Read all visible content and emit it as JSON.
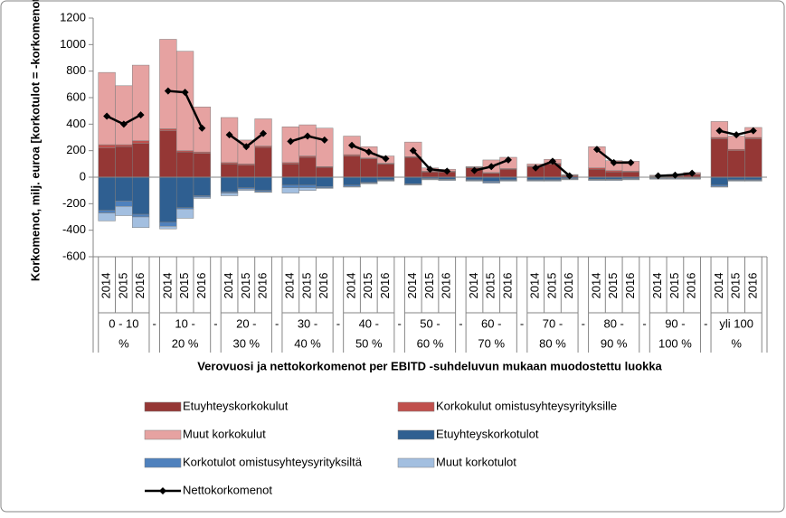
{
  "chart_data": {
    "type": "stacked-bar-line",
    "y_label": "Korkomenot, milj. euroa [korkotulot = -korkomenot]",
    "x_label": "Verovuosi ja nettokorkomenot per EBITD  -suhdeluvun mukaan muodostettu luokka",
    "categories": [
      "2014",
      "2015",
      "2016",
      "2014",
      "2015",
      "2016",
      "2014",
      "2015",
      "2016",
      "2014",
      "2015",
      "2016",
      "2014",
      "2015",
      "2016",
      "2014",
      "2015",
      "2016",
      "2014",
      "2015",
      "2016",
      "2014",
      "2015",
      "2016",
      "2014",
      "2015",
      "2016",
      "2014",
      "2015",
      "2016",
      "2014",
      "2015",
      "2016"
    ],
    "groups": [
      [
        "0 - 10",
        "%"
      ],
      [
        "10 -",
        "20 %"
      ],
      [
        "20 -",
        "30 %"
      ],
      [
        "30 -",
        "40 %"
      ],
      [
        "40 -",
        "50 %"
      ],
      [
        "50 -",
        "60 %"
      ],
      [
        "60 -",
        "70 %"
      ],
      [
        "70 -",
        "80 %"
      ],
      [
        "80 -",
        "90 %"
      ],
      [
        "90 -",
        "100 %"
      ],
      [
        "yli 100",
        "%"
      ]
    ],
    "group_separator": "-",
    "ylim": [
      -600,
      1200
    ],
    "yticks": [
      -600,
      -400,
      -200,
      0,
      200,
      400,
      600,
      800,
      1000,
      1200
    ],
    "grid": false,
    "series": [
      {
        "name": "Etuyhteyskorkokulut",
        "color": "#953735",
        "values": [
          220,
          230,
          255,
          350,
          190,
          180,
          100,
          90,
          225,
          100,
          150,
          75,
          160,
          140,
          100,
          150,
          40,
          40,
          70,
          30,
          60,
          80,
          100,
          10,
          60,
          40,
          40,
          5,
          10,
          20,
          290,
          200,
          290
        ]
      },
      {
        "name": "Korkokulut omistusyhteysyrityksille",
        "color": "#c0504d",
        "values": [
          25,
          15,
          20,
          15,
          10,
          10,
          10,
          10,
          10,
          10,
          10,
          5,
          10,
          5,
          5,
          5,
          5,
          5,
          5,
          5,
          5,
          5,
          5,
          5,
          10,
          10,
          5,
          5,
          5,
          5,
          10,
          10,
          10
        ]
      },
      {
        "name": "Muut korkokulut",
        "color": "#e6a2a1",
        "values": [
          545,
          445,
          570,
          675,
          750,
          340,
          340,
          180,
          205,
          270,
          235,
          290,
          140,
          85,
          55,
          110,
          25,
          15,
          5,
          95,
          85,
          15,
          30,
          5,
          160,
          75,
          75,
          5,
          5,
          10,
          120,
          100,
          75
        ]
      },
      {
        "name": "Etuyhteyskorkotulot",
        "color": "#2f5f91",
        "values": [
          -250,
          -180,
          -280,
          -340,
          -230,
          -140,
          -110,
          -80,
          -100,
          -60,
          -60,
          -70,
          -60,
          -40,
          -20,
          -50,
          -10,
          -15,
          -20,
          -30,
          -20,
          -20,
          -20,
          -10,
          -15,
          -15,
          -10,
          -5,
          -5,
          -5,
          -60,
          -20,
          -20
        ]
      },
      {
        "name": "Korkotulot omistusyhteysyrityksiltä",
        "color": "#4f81bd",
        "values": [
          -20,
          -40,
          -20,
          -30,
          -10,
          -10,
          -10,
          -10,
          -10,
          -20,
          -20,
          -10,
          -10,
          -5,
          -5,
          -5,
          -5,
          -5,
          -5,
          -10,
          -5,
          -5,
          -5,
          -5,
          -5,
          -5,
          -5,
          -5,
          -5,
          -5,
          -10,
          -5,
          -5
        ]
      },
      {
        "name": "Muut korkotulot",
        "color": "#a3bfe0",
        "values": [
          -60,
          -70,
          -80,
          -20,
          -70,
          -10,
          -20,
          -10,
          -5,
          -40,
          -20,
          -5,
          -5,
          -5,
          -5,
          -5,
          -5,
          -5,
          -5,
          -5,
          -5,
          -5,
          -5,
          -5,
          -5,
          -5,
          -5,
          -5,
          -5,
          -5,
          -5,
          -5,
          -5
        ]
      },
      {
        "name": "Nettokorkomenot",
        "type": "line",
        "color": "#000000",
        "values": [
          460,
          400,
          470,
          650,
          640,
          370,
          320,
          230,
          330,
          270,
          310,
          280,
          240,
          190,
          140,
          200,
          60,
          45,
          50,
          80,
          130,
          70,
          120,
          10,
          210,
          110,
          110,
          10,
          15,
          30,
          350,
          320,
          350
        ]
      }
    ]
  }
}
